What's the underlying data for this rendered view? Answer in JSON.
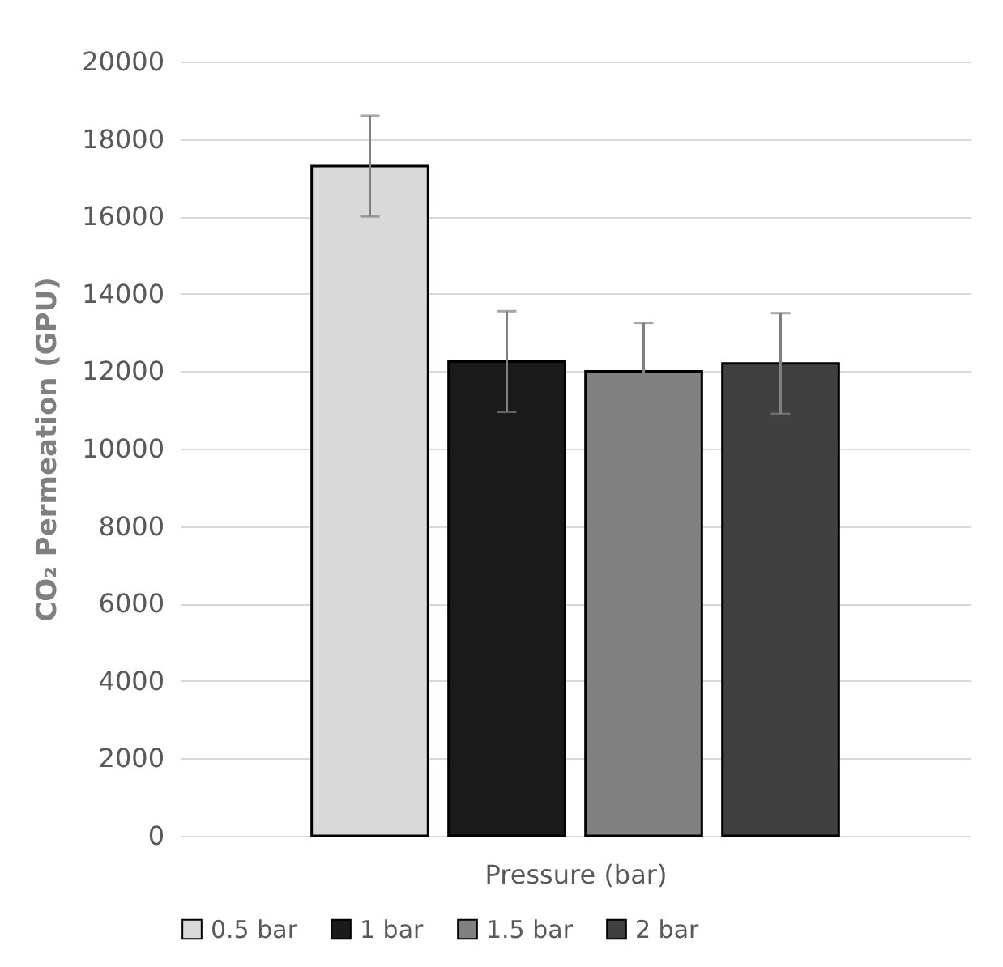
{
  "chart_data": {
    "type": "bar",
    "categories": [
      null
    ],
    "xlabel": "Pressure (bar)",
    "ylabel": "CO₂ Permeation (GPU)",
    "ylim": [
      0,
      20000
    ],
    "yticks": [
      0,
      2000,
      4000,
      6000,
      8000,
      10000,
      12000,
      14000,
      16000,
      18000,
      20000
    ],
    "grid": "y",
    "legend": "bottom",
    "series": [
      {
        "name": "0.5 bar",
        "color": "#d9d9d9",
        "values": [
          17300
        ],
        "errors": [
          1300
        ]
      },
      {
        "name": "1 bar",
        "color": "#1a1a1a",
        "values": [
          12250
        ],
        "errors": [
          1300
        ]
      },
      {
        "name": "1.5 bar",
        "color": "#808080",
        "values": [
          12000
        ],
        "errors": [
          1250
        ]
      },
      {
        "name": "2 bar",
        "color": "#404040",
        "values": [
          12200
        ],
        "errors": [
          1300
        ]
      }
    ]
  }
}
